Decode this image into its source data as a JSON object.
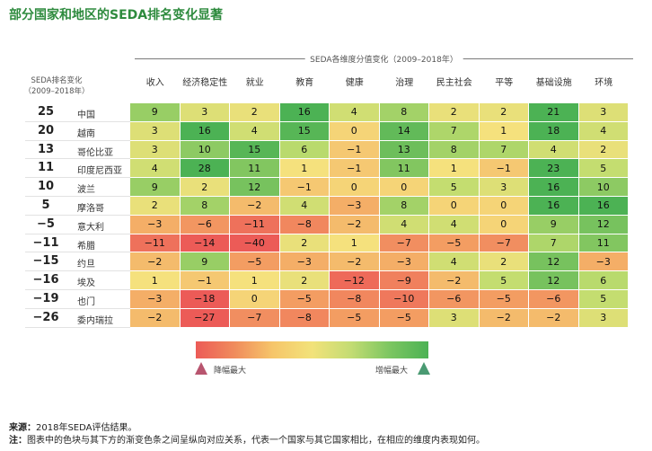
{
  "title": "部分国家和地区的SEDA排名变化显著",
  "header_span": "SEDA各维度分值变化（2009–2018年）",
  "rank_header": [
    "SEDA排名变化",
    "（2009–2018年）"
  ],
  "legend": {
    "low": "降幅最大",
    "high": "增幅最大"
  },
  "source_label": "来源：",
  "source_text": "2018年SEDA评估结果。",
  "note_label": "注：",
  "note_text": "图表中的色块与其下方的渐变色条之间呈纵向对应关系，代表一个国家与其它国家相比，在相应的维度内表现如何。",
  "chart_data": {
    "type": "heatmap",
    "columns": [
      "收入",
      "经济稳定性",
      "就业",
      "教育",
      "健康",
      "治理",
      "民主社会",
      "平等",
      "基础设施",
      "环境"
    ],
    "rows": [
      {
        "country": "中国",
        "rank_change": "25",
        "values": [
          9,
          3,
          2,
          16,
          4,
          8,
          2,
          2,
          21,
          3
        ]
      },
      {
        "country": "越南",
        "rank_change": "20",
        "values": [
          3,
          16,
          4,
          15,
          0,
          14,
          7,
          1,
          18,
          4
        ]
      },
      {
        "country": "哥伦比亚",
        "rank_change": "13",
        "values": [
          3,
          10,
          15,
          6,
          -1,
          13,
          8,
          7,
          4,
          2
        ]
      },
      {
        "country": "印度尼西亚",
        "rank_change": "11",
        "values": [
          4,
          28,
          11,
          1,
          -1,
          11,
          1,
          -1,
          23,
          5
        ]
      },
      {
        "country": "波兰",
        "rank_change": "10",
        "values": [
          9,
          2,
          12,
          -1,
          0,
          0,
          5,
          3,
          16,
          10
        ]
      },
      {
        "country": "摩洛哥",
        "rank_change": "5",
        "values": [
          2,
          8,
          -2,
          4,
          -3,
          8,
          0,
          0,
          16,
          16
        ]
      },
      {
        "country": "意大利",
        "rank_change": "−5",
        "values": [
          -3,
          -6,
          -11,
          -8,
          -2,
          4,
          4,
          0,
          9,
          12
        ]
      },
      {
        "country": "希腊",
        "rank_change": "−11",
        "values": [
          -11,
          -14,
          -40,
          2,
          1,
          -7,
          -5,
          -7,
          7,
          11
        ]
      },
      {
        "country": "约旦",
        "rank_change": "−15",
        "values": [
          -2,
          9,
          -5,
          -3,
          -2,
          -3,
          4,
          2,
          12,
          -3
        ]
      },
      {
        "country": "埃及",
        "rank_change": "−16",
        "values": [
          1,
          -1,
          1,
          2,
          -12,
          -9,
          -2,
          5,
          12,
          6
        ]
      },
      {
        "country": "也门",
        "rank_change": "−19",
        "values": [
          -3,
          -18,
          0,
          -5,
          -8,
          -10,
          -6,
          -5,
          -6,
          5
        ]
      },
      {
        "country": "委内瑞拉",
        "rank_change": "−26",
        "values": [
          -2,
          -27,
          -7,
          -8,
          -5,
          -5,
          3,
          -2,
          -2,
          3
        ]
      }
    ]
  }
}
